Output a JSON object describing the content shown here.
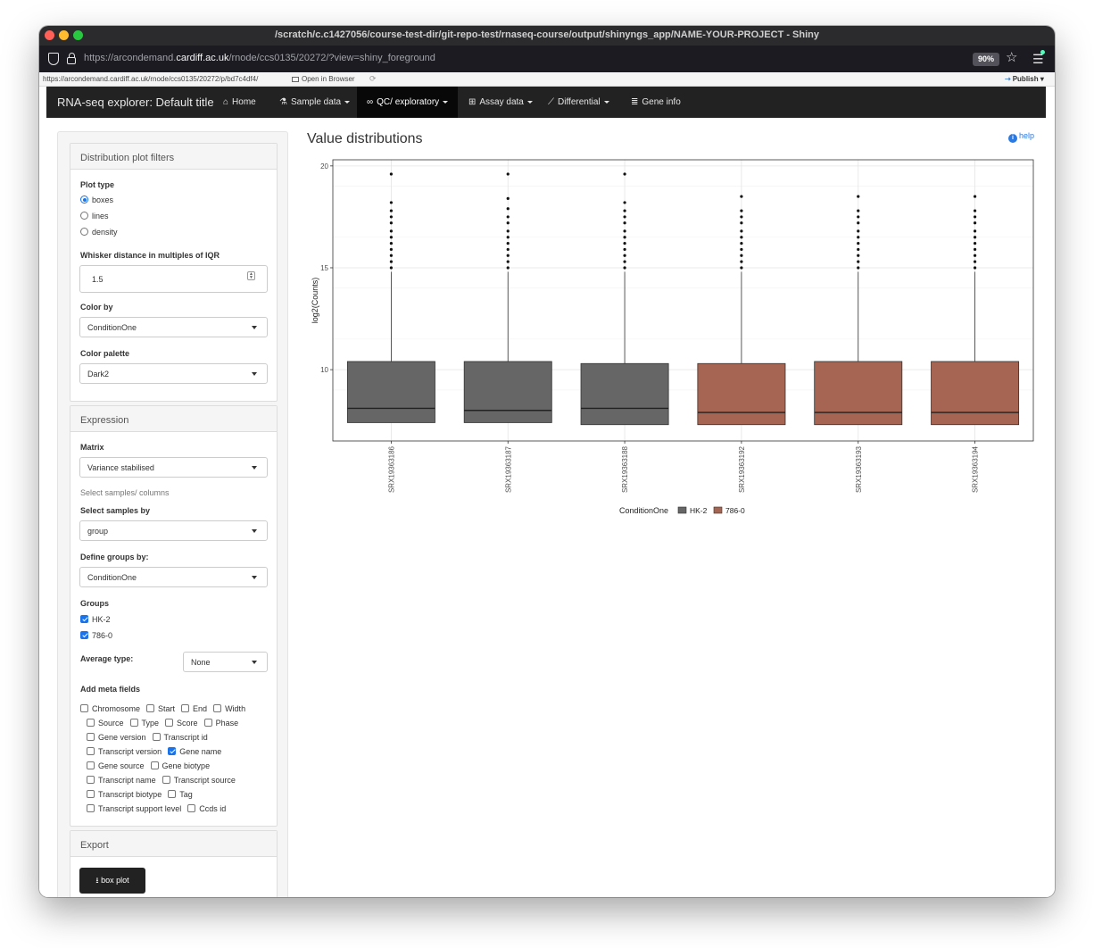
{
  "window": {
    "title": "/scratch/c.c1427056/course-test-dir/git-repo-test/rnaseq-course/output/shinyngs_app/NAME-YOUR-PROJECT - Shiny"
  },
  "browser": {
    "url_prefix": "https://arcondemand.",
    "url_domain": "cardiff.ac.uk",
    "url_path": "/rnode/ccs0135/20272/?view=shiny_foreground",
    "zoom": "90%"
  },
  "rstudio_bar": {
    "url": "https://arcondemand.cardiff.ac.uk/rnode/ccs0135/20272/p/bd7c4df4/",
    "open_in_browser": "Open in Browser",
    "publish": "Publish"
  },
  "navbar": {
    "brand": "RNA-seq explorer: Default title",
    "items": [
      {
        "label": "Home",
        "icon": "home-icon"
      },
      {
        "label": "Sample data",
        "icon": "flask-icon"
      },
      {
        "label": "QC/ exploratory",
        "icon": "binoculars-icon"
      },
      {
        "label": "Assay data",
        "icon": "table-icon"
      },
      {
        "label": "Differential",
        "icon": "line-chart-icon"
      },
      {
        "label": "Gene info",
        "icon": "bar-list-icon"
      }
    ]
  },
  "filters": {
    "heading": "Distribution plot filters",
    "plot_type_label": "Plot type",
    "plot_types": [
      "boxes",
      "lines",
      "density"
    ],
    "selected_plot_type": "boxes",
    "whisker_label": "Whisker distance in multiples of IQR",
    "whisker_value": "1.5",
    "color_by_label": "Color by",
    "color_by_value": "ConditionOne",
    "palette_label": "Color palette",
    "palette_value": "Dark2"
  },
  "expression": {
    "heading": "Expression",
    "matrix_label": "Matrix",
    "matrix_value": "Variance stabilised",
    "select_note": "Select samples/ columns",
    "select_by_label": "Select samples by",
    "select_by_value": "group",
    "groups_by_label": "Define groups by:",
    "groups_by_value": "ConditionOne",
    "groups_label": "Groups",
    "groups": [
      {
        "label": "HK-2",
        "checked": true
      },
      {
        "label": "786-0",
        "checked": true
      }
    ],
    "average_label": "Average type:",
    "average_value": "None",
    "meta_label": "Add meta fields",
    "meta_rows": [
      [
        {
          "label": "Chromosome",
          "checked": false
        },
        {
          "label": "Start",
          "checked": false
        },
        {
          "label": "End",
          "checked": false
        },
        {
          "label": "Width",
          "checked": false
        }
      ],
      [
        {
          "label": "Source",
          "checked": false
        },
        {
          "label": "Type",
          "checked": false
        },
        {
          "label": "Score",
          "checked": false
        },
        {
          "label": "Phase",
          "checked": false
        }
      ],
      [
        {
          "label": "Gene version",
          "checked": false
        },
        {
          "label": "Transcript id",
          "checked": false
        }
      ],
      [
        {
          "label": "Transcript version",
          "checked": false
        },
        {
          "label": "Gene name",
          "checked": true
        }
      ],
      [
        {
          "label": "Gene source",
          "checked": false
        },
        {
          "label": "Gene biotype",
          "checked": false
        }
      ],
      [
        {
          "label": "Transcript name",
          "checked": false
        },
        {
          "label": "Transcript source",
          "checked": false
        }
      ],
      [
        {
          "label": "Transcript biotype",
          "checked": false
        },
        {
          "label": "Tag",
          "checked": false
        }
      ],
      [
        {
          "label": "Transcript support level",
          "checked": false
        },
        {
          "label": "Ccds id",
          "checked": false
        }
      ]
    ]
  },
  "export": {
    "heading": "Export",
    "button": "box plot"
  },
  "main": {
    "title": "Value distributions",
    "help": "help"
  },
  "chart_data": {
    "type": "box",
    "title": "",
    "xlabel": "",
    "ylabel": "log2(Counts)",
    "ylim": [
      6.5,
      20.3
    ],
    "yticks": [
      10,
      15,
      20
    ],
    "grid": true,
    "legend_title": "ConditionOne",
    "legend_position": "bottom",
    "legend": [
      {
        "name": "HK-2",
        "color": "#666666"
      },
      {
        "name": "786-0",
        "color": "#a56552"
      }
    ],
    "samples": [
      {
        "name": "SRX19363186",
        "group": "HK-2",
        "q1": 7.4,
        "median": 8.1,
        "q3": 10.4,
        "whisker_high": 14.8,
        "outliers": [
          15.0,
          15.3,
          15.6,
          15.9,
          16.2,
          16.5,
          16.8,
          17.2,
          17.5,
          17.8,
          18.2,
          19.6
        ]
      },
      {
        "name": "SRX19363187",
        "group": "HK-2",
        "q1": 7.4,
        "median": 8.0,
        "q3": 10.4,
        "whisker_high": 14.8,
        "outliers": [
          15.0,
          15.3,
          15.6,
          15.9,
          16.2,
          16.5,
          16.8,
          17.2,
          17.5,
          17.9,
          18.4,
          19.6
        ]
      },
      {
        "name": "SRX19363188",
        "group": "HK-2",
        "q1": 7.3,
        "median": 8.1,
        "q3": 10.3,
        "whisker_high": 14.8,
        "outliers": [
          15.0,
          15.3,
          15.6,
          15.9,
          16.2,
          16.5,
          16.8,
          17.2,
          17.5,
          17.8,
          18.2,
          19.6
        ]
      },
      {
        "name": "SRX19363192",
        "group": "786-0",
        "q1": 7.3,
        "median": 7.9,
        "q3": 10.3,
        "whisker_high": 14.8,
        "outliers": [
          15.0,
          15.3,
          15.6,
          15.9,
          16.2,
          16.5,
          16.8,
          17.2,
          17.5,
          17.8,
          18.5
        ]
      },
      {
        "name": "SRX19363193",
        "group": "786-0",
        "q1": 7.3,
        "median": 7.9,
        "q3": 10.4,
        "whisker_high": 14.8,
        "outliers": [
          15.0,
          15.3,
          15.6,
          15.9,
          16.2,
          16.5,
          16.8,
          17.2,
          17.5,
          17.8,
          18.5
        ]
      },
      {
        "name": "SRX19363194",
        "group": "786-0",
        "q1": 7.3,
        "median": 7.9,
        "q3": 10.4,
        "whisker_high": 14.8,
        "outliers": [
          15.0,
          15.3,
          15.6,
          15.9,
          16.2,
          16.5,
          16.8,
          17.2,
          17.5,
          17.8,
          18.5
        ]
      }
    ]
  }
}
